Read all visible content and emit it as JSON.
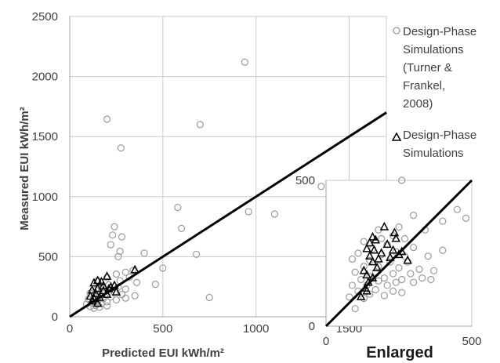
{
  "chart_data": [
    {
      "type": "scatter",
      "xlabel": "Predicted EUI kWh/m²",
      "ylabel": "Measured EUI kWh/m²",
      "xlim": [
        0,
        1700
      ],
      "ylim": [
        0,
        2500
      ],
      "xticks": [
        "0",
        "500",
        "1000",
        "1500"
      ],
      "yticks": [
        "0",
        "500",
        "1000",
        "1500",
        "2000",
        "2500"
      ],
      "grid": true,
      "reference_line": "y = x",
      "legend_position": "right",
      "series": [
        {
          "name": "Design-Phase Simulations (Turner & Frankel, 2008)",
          "marker": "circle",
          "color": "#9a9a9a",
          "points": [
            [
              940,
              2120
            ],
            [
              200,
              1645
            ],
            [
              700,
              1600
            ],
            [
              275,
              1405
            ],
            [
              1350,
              1085
            ],
            [
              580,
              910
            ],
            [
              960,
              875
            ],
            [
              1100,
              855
            ],
            [
              600,
              735
            ],
            [
              240,
              750
            ],
            [
              230,
              680
            ],
            [
              280,
              665
            ],
            [
              220,
              600
            ],
            [
              270,
              545
            ],
            [
              400,
              530
            ],
            [
              680,
              520
            ],
            [
              260,
              500
            ],
            [
              500,
              405
            ],
            [
              340,
              385
            ],
            [
              300,
              370
            ],
            [
              250,
              355
            ],
            [
              320,
              330
            ],
            [
              200,
              325
            ],
            [
              270,
              300
            ],
            [
              150,
              300
            ],
            [
              360,
              285
            ],
            [
              460,
              270
            ],
            [
              210,
              265
            ],
            [
              260,
              245
            ],
            [
              170,
              235
            ],
            [
              300,
              230
            ],
            [
              140,
              220
            ],
            [
              190,
              210
            ],
            [
              240,
              205
            ],
            [
              110,
              195
            ],
            [
              280,
              185
            ],
            [
              160,
              180
            ],
            [
              350,
              175
            ],
            [
              220,
              165
            ],
            [
              130,
              160
            ],
            [
              750,
              160
            ],
            [
              300,
              155
            ],
            [
              180,
              150
            ],
            [
              100,
              145
            ],
            [
              250,
              140
            ],
            [
              150,
              130
            ],
            [
              200,
              125
            ],
            [
              120,
              115
            ],
            [
              170,
              110
            ],
            [
              90,
              105
            ],
            [
              140,
              95
            ],
            [
              200,
              90
            ],
            [
              110,
              85
            ],
            [
              160,
              80
            ],
            [
              130,
              70
            ]
          ]
        },
        {
          "name": "Design-Phase Simulations",
          "marker": "triangle",
          "color": "#000000",
          "points": [
            [
              200,
              335
            ],
            [
              150,
              300
            ],
            [
              350,
              390
            ],
            [
              130,
              280
            ],
            [
              170,
              290
            ],
            [
              240,
              260
            ],
            [
              180,
              255
            ],
            [
              220,
              245
            ],
            [
              150,
              235
            ],
            [
              210,
              230
            ],
            [
              120,
              220
            ],
            [
              180,
              215
            ],
            [
              250,
              205
            ],
            [
              140,
              190
            ],
            [
              200,
              185
            ],
            [
              110,
              170
            ],
            [
              160,
              160
            ],
            [
              130,
              150
            ],
            [
              120,
              130
            ],
            [
              150,
              110
            ]
          ]
        }
      ]
    },
    {
      "type": "scatter",
      "title": "Enlarged",
      "xlim": [
        0,
        500
      ],
      "ylim": [
        0,
        500
      ],
      "xticks": [
        "0",
        "500"
      ],
      "yticks": [
        "0",
        "500"
      ],
      "grid": true,
      "reference_line": "y = x",
      "series": [
        {
          "name": "Design-Phase Simulations (Turner & Frankel, 2008)",
          "marker": "circle",
          "color": "#9a9a9a",
          "points": [
            [
              260,
              500
            ],
            [
              400,
              360
            ],
            [
              450,
              400
            ],
            [
              300,
              380
            ],
            [
              480,
              370
            ],
            [
              250,
              340
            ],
            [
              180,
              330
            ],
            [
              340,
              330
            ],
            [
              230,
              310
            ],
            [
              190,
              300
            ],
            [
              270,
              300
            ],
            [
              130,
              290
            ],
            [
              210,
              280
            ],
            [
              300,
              270
            ],
            [
              400,
              260
            ],
            [
              160,
              265
            ],
            [
              240,
              255
            ],
            [
              110,
              250
            ],
            [
              190,
              245
            ],
            [
              270,
              240
            ],
            [
              350,
              240
            ],
            [
              90,
              230
            ],
            [
              150,
              225
            ],
            [
              220,
              220
            ],
            [
              280,
              220
            ],
            [
              130,
              205
            ],
            [
              180,
              205
            ],
            [
              250,
              200
            ],
            [
              320,
              195
            ],
            [
              370,
              190
            ],
            [
              100,
              185
            ],
            [
              170,
              185
            ],
            [
              230,
              180
            ],
            [
              290,
              180
            ],
            [
              150,
              170
            ],
            [
              200,
              165
            ],
            [
              260,
              160
            ],
            [
              330,
              165
            ],
            [
              120,
              160
            ],
            [
              180,
              155
            ],
            [
              240,
              150
            ],
            [
              300,
              150
            ],
            [
              360,
              160
            ],
            [
              90,
              140
            ],
            [
              140,
              140
            ],
            [
              210,
              140
            ],
            [
              170,
              125
            ],
            [
              230,
              120
            ],
            [
              110,
              120
            ],
            [
              260,
              115
            ],
            [
              150,
              110
            ],
            [
              200,
              105
            ],
            [
              80,
              100
            ],
            [
              130,
              95
            ],
            [
              100,
              60
            ]
          ]
        },
        {
          "name": "Design-Phase Simulations",
          "marker": "triangle",
          "color": "#000000",
          "points": [
            [
              200,
              340
            ],
            [
              160,
              305
            ],
            [
              235,
              320
            ],
            [
              240,
              300
            ],
            [
              170,
              295
            ],
            [
              150,
              285
            ],
            [
              210,
              280
            ],
            [
              140,
              265
            ],
            [
              165,
              260
            ],
            [
              230,
              260
            ],
            [
              260,
              255
            ],
            [
              190,
              250
            ],
            [
              250,
              245
            ],
            [
              150,
              240
            ],
            [
              220,
              235
            ],
            [
              180,
              230
            ],
            [
              280,
              225
            ],
            [
              160,
              220
            ],
            [
              175,
              200
            ],
            [
              130,
              190
            ],
            [
              140,
              175
            ],
            [
              160,
              165
            ],
            [
              145,
              150
            ],
            [
              135,
              130
            ],
            [
              140,
              120
            ],
            [
              120,
              100
            ]
          ]
        }
      ]
    }
  ]
}
